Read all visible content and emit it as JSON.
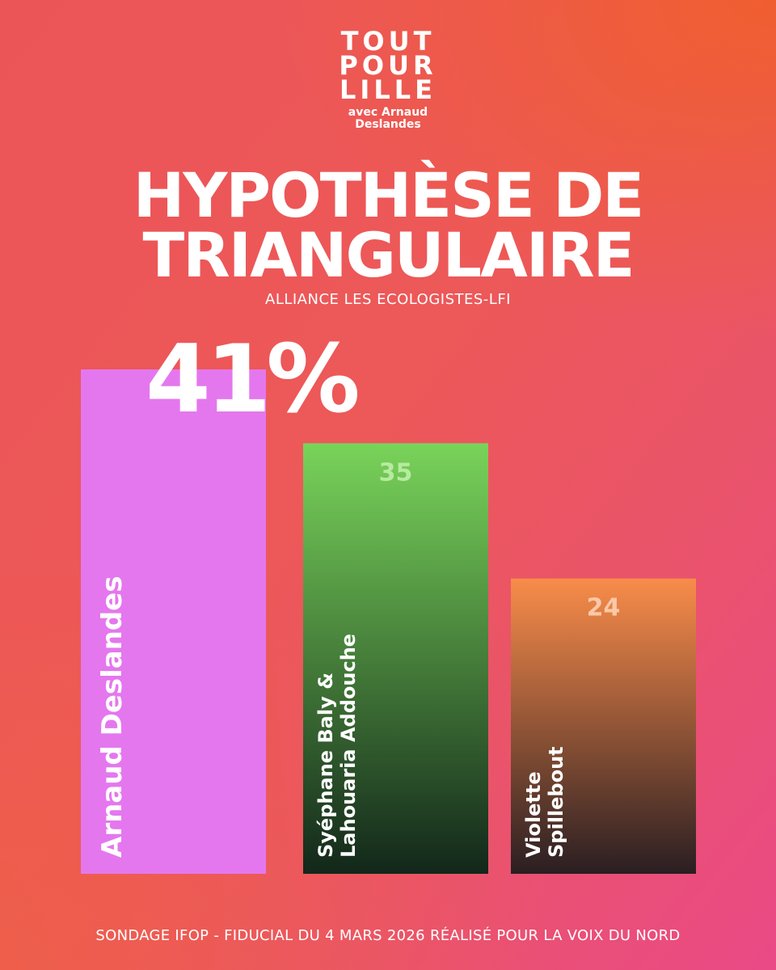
{
  "logo": {
    "lines": [
      "TOUT",
      "POUR",
      "LILLE"
    ],
    "sub": [
      "avec Arnaud",
      "Deslandes"
    ]
  },
  "header": {
    "title_lines": [
      "HYPOTHÈSE DE",
      "TRIANGULAIRE"
    ],
    "subtitle": "ALLIANCE LES ECOLOGISTES-LFI"
  },
  "highlight": "41%",
  "footer": "SONDAGE IFOP - FIDUCIAL DU 4 MARS 2026 RÉALISÉ POUR LA VOIX DU NORD",
  "chart_data": {
    "type": "bar",
    "title": "HYPOTHÈSE DE TRIANGULAIRE",
    "subtitle": "ALLIANCE LES ECOLOGISTES-LFI",
    "categories": [
      "Arnaud Deslandes",
      "Syéphane Baly & Lahouaria Addouche",
      "Violette Spillebout"
    ],
    "category_lines": [
      [
        "Arnaud Deslandes"
      ],
      [
        "Syéphane Baly &",
        "Lahouaria Addouche"
      ],
      [
        "Violette",
        "Spillebout"
      ]
    ],
    "values": [
      41,
      35,
      24
    ],
    "value_labels": [
      "41%",
      "35",
      "24"
    ],
    "ylim": [
      0,
      41
    ],
    "colors": {
      "bar1": "#e477ee",
      "bar2_top": "#79d45a",
      "bar2_bottom": "#12271a",
      "bar3_top": "#f98c4a",
      "bar3_bottom": "#2a1e22",
      "label2": "#b7eaa0",
      "label3": "#fbc9a8"
    }
  }
}
